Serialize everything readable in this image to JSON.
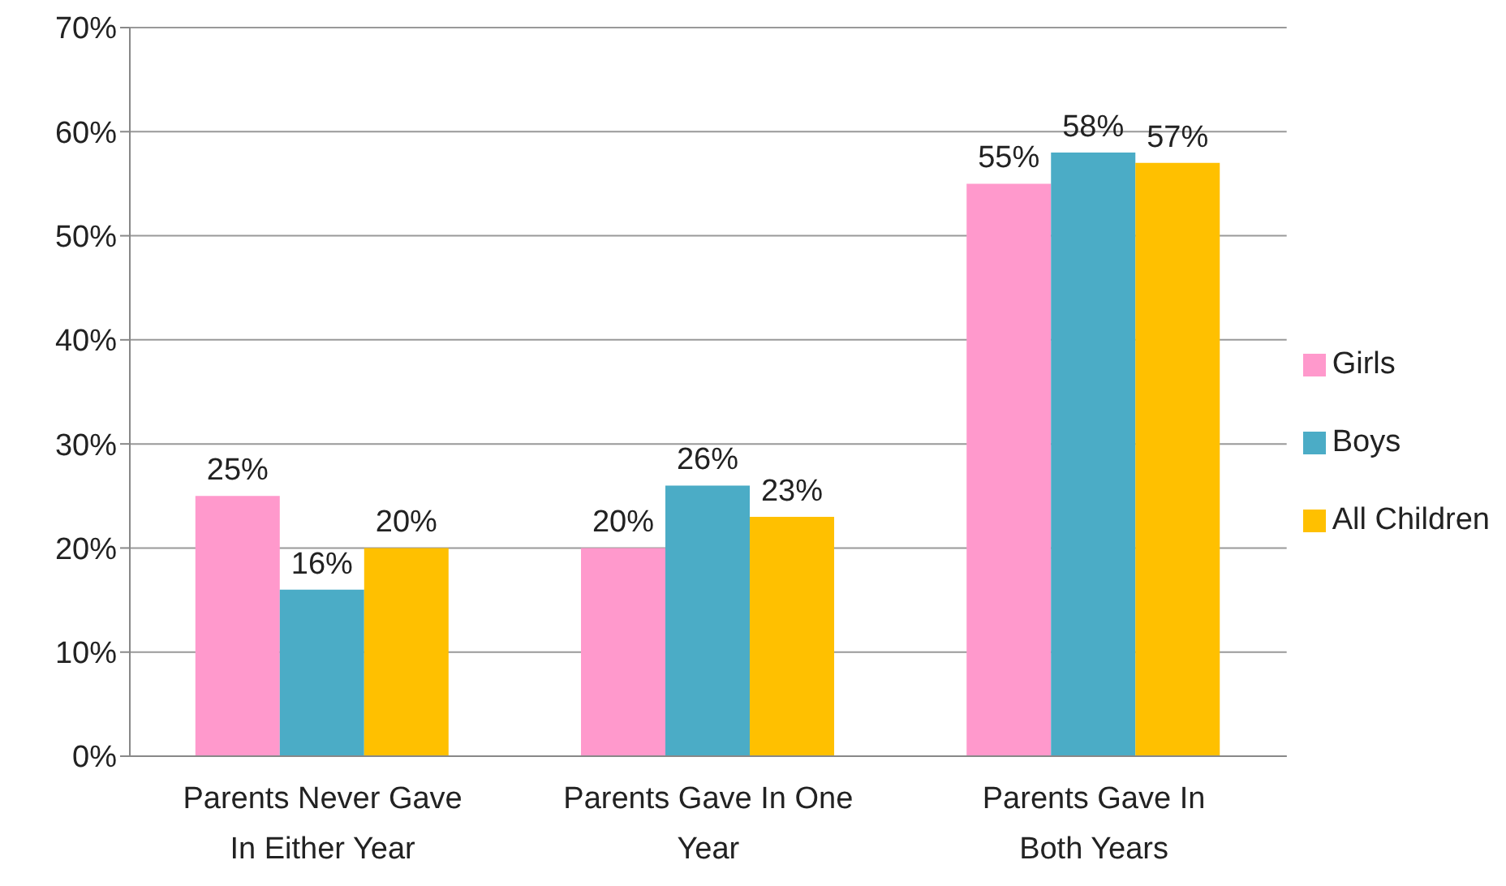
{
  "chart_data": {
    "type": "bar",
    "categories": [
      "Parents Never Gave In Either Year",
      "Parents Gave In One Year",
      "Parents Gave In Both Years"
    ],
    "series": [
      {
        "name": "Girls",
        "color": "#ff99cc",
        "values": [
          25,
          20,
          55
        ],
        "value_labels": [
          "25%",
          "20%",
          "55%"
        ]
      },
      {
        "name": "Boys",
        "color": "#4bacc6",
        "values": [
          16,
          26,
          58
        ],
        "value_labels": [
          "16%",
          "26%",
          "58%"
        ]
      },
      {
        "name": "All Children",
        "color": "#ffc000",
        "values": [
          20,
          23,
          57
        ],
        "value_labels": [
          "20%",
          "23%",
          "57%"
        ]
      }
    ],
    "ylim": [
      0,
      70
    ],
    "yticks": [
      {
        "value": 0,
        "label": "0%"
      },
      {
        "value": 10,
        "label": "10%"
      },
      {
        "value": 20,
        "label": "20%"
      },
      {
        "value": 30,
        "label": "30%"
      },
      {
        "value": 40,
        "label": "40%"
      },
      {
        "value": 50,
        "label": "50%"
      },
      {
        "value": 60,
        "label": "60%"
      },
      {
        "value": 70,
        "label": "70%"
      }
    ],
    "grid": "y",
    "legend": "right"
  }
}
